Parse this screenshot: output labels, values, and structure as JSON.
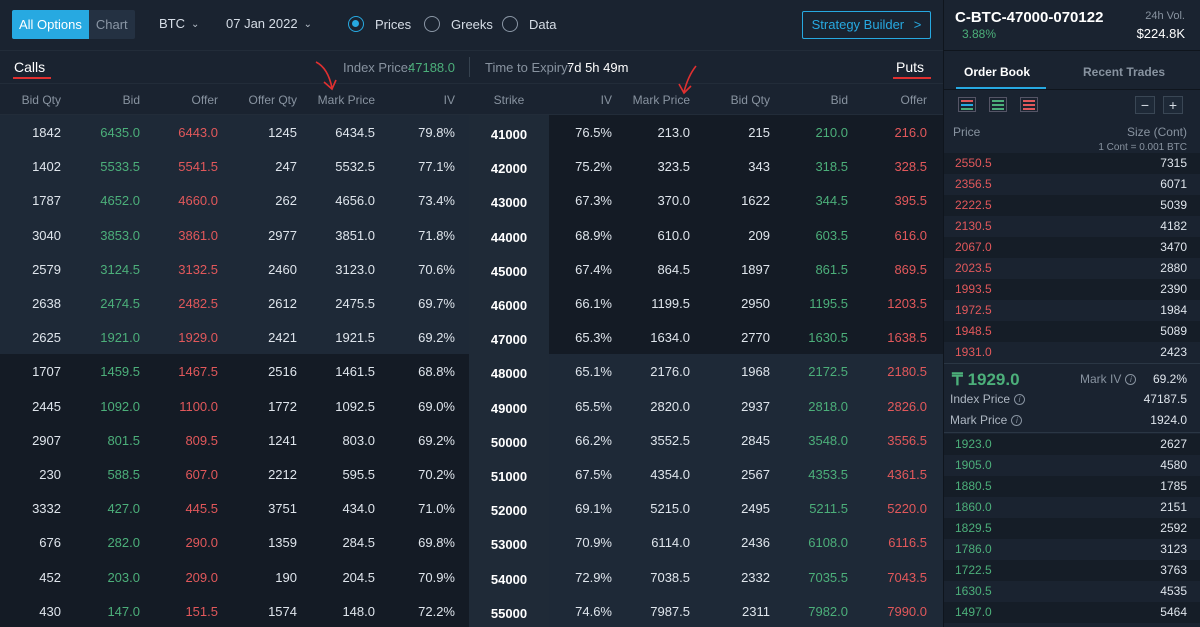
{
  "toolbar": {
    "view_tabs": [
      "All Options",
      "Chart"
    ],
    "asset": "BTC",
    "expiry": "07 Jan 2022",
    "modes": [
      "Prices",
      "Greeks",
      "Data"
    ],
    "selected_mode": "Prices",
    "strategy_builder": "Strategy Builder",
    "strategy_builder_arrow": ">"
  },
  "infobar": {
    "calls_label": "Calls",
    "puts_label": "Puts",
    "index_price_label": "Index Price:",
    "index_price_value": "47188.0",
    "expiry_label": "Time to Expiry:",
    "expiry_value": "7d 5h 49m"
  },
  "columns": {
    "calls": [
      "Bid Qty",
      "Bid",
      "Offer",
      "Offer Qty",
      "Mark Price",
      "IV"
    ],
    "strike": "Strike",
    "puts": [
      "IV",
      "Mark Price",
      "Bid Qty",
      "Bid",
      "Offer"
    ]
  },
  "rows": [
    {
      "calls": [
        "1842",
        "6435.0",
        "6443.0",
        "1245",
        "6434.5",
        "79.8%"
      ],
      "strike": "41000",
      "puts": [
        "76.5%",
        "213.0",
        "215",
        "210.0",
        "216.0"
      ]
    },
    {
      "calls": [
        "1402",
        "5533.5",
        "5541.5",
        "247",
        "5532.5",
        "77.1%"
      ],
      "strike": "42000",
      "puts": [
        "75.2%",
        "323.5",
        "343",
        "318.5",
        "328.5"
      ]
    },
    {
      "calls": [
        "1787",
        "4652.0",
        "4660.0",
        "262",
        "4656.0",
        "73.4%"
      ],
      "strike": "43000",
      "puts": [
        "67.3%",
        "370.0",
        "1622",
        "344.5",
        "395.5"
      ]
    },
    {
      "calls": [
        "3040",
        "3853.0",
        "3861.0",
        "2977",
        "3851.0",
        "71.8%"
      ],
      "strike": "44000",
      "puts": [
        "68.9%",
        "610.0",
        "209",
        "603.5",
        "616.0"
      ]
    },
    {
      "calls": [
        "2579",
        "3124.5",
        "3132.5",
        "2460",
        "3123.0",
        "70.6%"
      ],
      "strike": "45000",
      "puts": [
        "67.4%",
        "864.5",
        "1897",
        "861.5",
        "869.5"
      ]
    },
    {
      "calls": [
        "2638",
        "2474.5",
        "2482.5",
        "2612",
        "2475.5",
        "69.7%"
      ],
      "strike": "46000",
      "puts": [
        "66.1%",
        "1199.5",
        "2950",
        "1195.5",
        "1203.5"
      ]
    },
    {
      "calls": [
        "2625",
        "1921.0",
        "1929.0",
        "2421",
        "1921.5",
        "69.2%"
      ],
      "strike": "47000",
      "puts": [
        "65.3%",
        "1634.0",
        "2770",
        "1630.5",
        "1638.5"
      ]
    },
    {
      "calls": [
        "1707",
        "1459.5",
        "1467.5",
        "2516",
        "1461.5",
        "68.8%"
      ],
      "strike": "48000",
      "puts": [
        "65.1%",
        "2176.0",
        "1968",
        "2172.5",
        "2180.5"
      ]
    },
    {
      "calls": [
        "2445",
        "1092.0",
        "1100.0",
        "1772",
        "1092.5",
        "69.0%"
      ],
      "strike": "49000",
      "puts": [
        "65.5%",
        "2820.0",
        "2937",
        "2818.0",
        "2826.0"
      ]
    },
    {
      "calls": [
        "2907",
        "801.5",
        "809.5",
        "1241",
        "803.0",
        "69.2%"
      ],
      "strike": "50000",
      "puts": [
        "66.2%",
        "3552.5",
        "2845",
        "3548.0",
        "3556.5"
      ]
    },
    {
      "calls": [
        "230",
        "588.5",
        "607.0",
        "2212",
        "595.5",
        "70.2%"
      ],
      "strike": "51000",
      "puts": [
        "67.5%",
        "4354.0",
        "2567",
        "4353.5",
        "4361.5"
      ]
    },
    {
      "calls": [
        "3332",
        "427.0",
        "445.5",
        "3751",
        "434.0",
        "71.0%"
      ],
      "strike": "52000",
      "puts": [
        "69.1%",
        "5215.0",
        "2495",
        "5211.5",
        "5220.0"
      ]
    },
    {
      "calls": [
        "676",
        "282.0",
        "290.0",
        "1359",
        "284.5",
        "69.8%"
      ],
      "strike": "53000",
      "puts": [
        "70.9%",
        "6114.0",
        "2436",
        "6108.0",
        "6116.5"
      ]
    },
    {
      "calls": [
        "452",
        "203.0",
        "209.0",
        "190",
        "204.5",
        "70.9%"
      ],
      "strike": "54000",
      "puts": [
        "72.9%",
        "7038.5",
        "2332",
        "7035.5",
        "7043.5"
      ]
    },
    {
      "calls": [
        "430",
        "147.0",
        "151.5",
        "1574",
        "148.0",
        "72.2%"
      ],
      "strike": "55000",
      "puts": [
        "74.6%",
        "7987.5",
        "2311",
        "7982.0",
        "7990.0"
      ]
    }
  ],
  "itm_calls_rows": 7,
  "panel": {
    "instrument": "C-BTC-47000-070122",
    "change_pct": "3.88%",
    "vol_label": "24h Vol.",
    "vol_value": "$224.8K",
    "tabs": [
      "Order Book",
      "Recent Trades"
    ],
    "active_tab": "Order Book",
    "minus": "−",
    "plus": "+",
    "price_header": "Price",
    "size_header": "Size (Cont)",
    "cont_note": "1 Cont = 0.001 BTC",
    "asks": [
      [
        "2550.5",
        "7315"
      ],
      [
        "2356.5",
        "6071"
      ],
      [
        "2222.5",
        "5039"
      ],
      [
        "2130.5",
        "4182"
      ],
      [
        "2067.0",
        "3470"
      ],
      [
        "2023.5",
        "2880"
      ],
      [
        "1993.5",
        "2390"
      ],
      [
        "1972.5",
        "1984"
      ],
      [
        "1948.5",
        "5089"
      ],
      [
        "1931.0",
        "2423"
      ]
    ],
    "last_price_symbol": "₸",
    "last_price": "1929.0",
    "mark_iv_label": "Mark IV",
    "mark_iv_value": "69.2%",
    "index_price_label": "Index Price",
    "index_price_value": "47187.5",
    "mark_price_label": "Mark Price",
    "mark_price_value": "1924.0",
    "info_glyph": "i",
    "bids": [
      [
        "1923.0",
        "2627"
      ],
      [
        "1905.0",
        "4580"
      ],
      [
        "1880.5",
        "1785"
      ],
      [
        "1860.0",
        "2151"
      ],
      [
        "1829.5",
        "2592"
      ],
      [
        "1786.0",
        "3123"
      ],
      [
        "1722.5",
        "3763"
      ],
      [
        "1630.5",
        "4535"
      ],
      [
        "1497.0",
        "5464"
      ]
    ]
  },
  "colors": {
    "accent": "#27a9e1",
    "bid_green": "#4caf7a",
    "offer_red": "#e2585b",
    "annotation_red": "#e03030"
  }
}
